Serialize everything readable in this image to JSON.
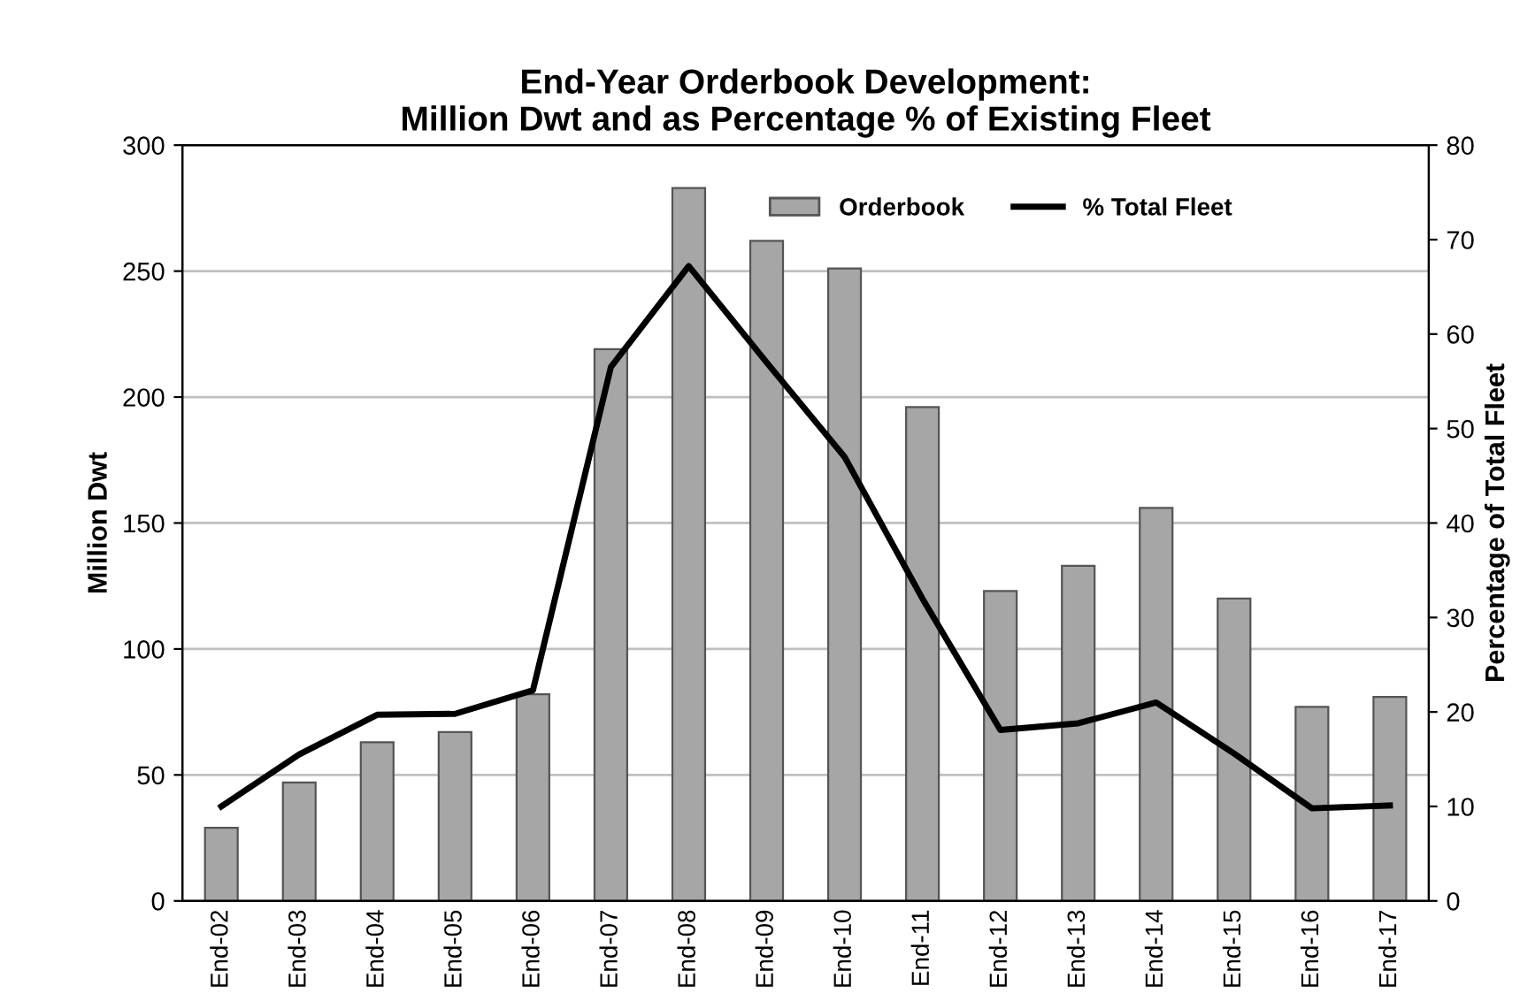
{
  "chart_data": {
    "type": "bar",
    "title": "End-Year Orderbook Development:\nMillion Dwt and as Percentage % of Existing Fleet",
    "ylabel": "Million Dwt",
    "y2label": "Percentage of Total Fleet",
    "categories": [
      "End-02",
      "End-03",
      "End-04",
      "End-05",
      "End-06",
      "End-07",
      "End-08",
      "End-09",
      "End-10",
      "End-11",
      "End-12",
      "End-13",
      "End-14",
      "End-15",
      "End-16",
      "End-17"
    ],
    "series": [
      {
        "name": "Orderbook",
        "color": "#a6a6a6",
        "values": [
          29,
          47,
          63,
          67,
          82,
          219,
          283,
          262,
          251,
          196,
          123,
          133,
          156,
          120,
          77,
          81
        ]
      },
      {
        "name": "% Total Fleet",
        "type": "line",
        "axis": "y2",
        "color": "#000000",
        "values": [
          10,
          15.5,
          19.7,
          19.8,
          22.3,
          56.5,
          67.2,
          57,
          47,
          32,
          18.1,
          18.8,
          21,
          15.6,
          9.8,
          10.1
        ]
      }
    ],
    "ylim": [
      0,
      300
    ],
    "yticks": [
      0,
      50,
      100,
      150,
      200,
      250,
      300
    ],
    "y2lim": [
      0,
      80
    ],
    "y2ticks": [
      0,
      10,
      20,
      30,
      40,
      50,
      60,
      70,
      80
    ],
    "grid": "y",
    "legend": "top right",
    "marker": "none",
    "line_style": "solid"
  }
}
